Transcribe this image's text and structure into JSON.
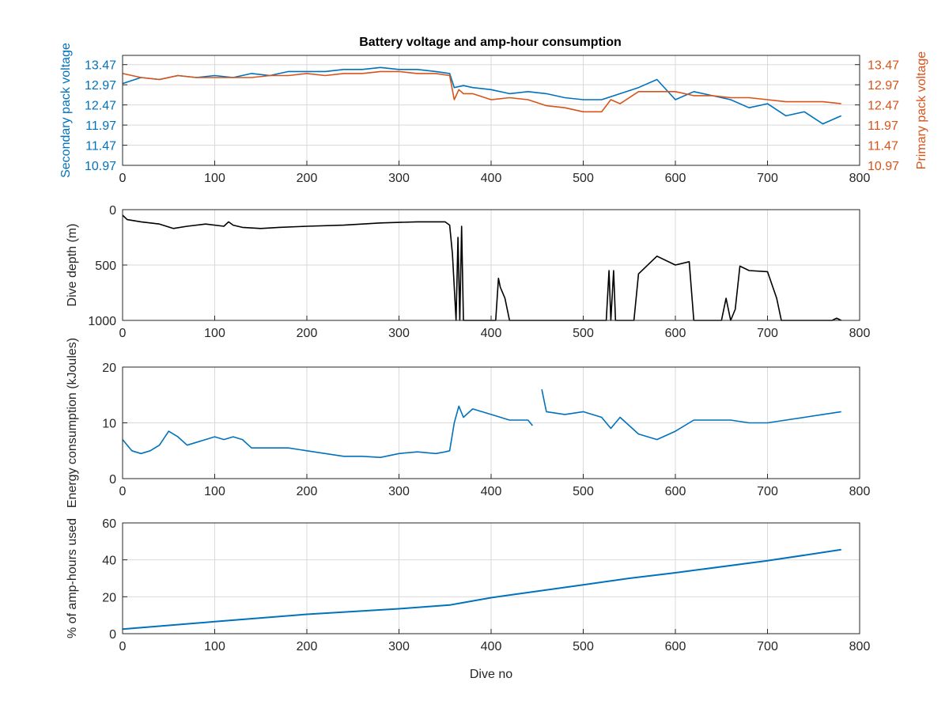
{
  "colors": {
    "secondary": "#0072bd",
    "primary": "#d95319",
    "depth": "#000000",
    "energy": "#0072bd",
    "amp_hours": "#0072bd",
    "grid": "#d9d9d9",
    "axis": "#262626"
  },
  "chart_data": [
    {
      "type": "line",
      "title": "Battery voltage and amp-hour consumption",
      "xlabel": "",
      "ylabel": "Secondary pack voltage",
      "ylabel_right": "Primary pack voltage",
      "xlim": [
        0,
        800
      ],
      "ylim": [
        10.97,
        13.7
      ],
      "xticks": [
        "0",
        "100",
        "200",
        "300",
        "400",
        "500",
        "600",
        "700",
        "800"
      ],
      "yticks": [
        "10.97",
        "11.47",
        "11.97",
        "12.47",
        "12.97",
        "13.47"
      ],
      "grid": true,
      "series": [
        {
          "axis": "left",
          "color": "#0072bd",
          "x": [
            0,
            20,
            40,
            60,
            80,
            100,
            120,
            140,
            160,
            180,
            200,
            220,
            240,
            260,
            280,
            300,
            320,
            340,
            355,
            360,
            370,
            380,
            400,
            420,
            440,
            460,
            480,
            500,
            520,
            540,
            560,
            580,
            600,
            620,
            640,
            660,
            680,
            700,
            720,
            740,
            760,
            780
          ],
          "y": [
            13.0,
            13.15,
            13.1,
            13.2,
            13.15,
            13.2,
            13.15,
            13.25,
            13.2,
            13.3,
            13.3,
            13.3,
            13.35,
            13.35,
            13.4,
            13.35,
            13.35,
            13.3,
            13.25,
            12.9,
            12.95,
            12.9,
            12.85,
            12.75,
            12.8,
            12.75,
            12.65,
            12.6,
            12.6,
            12.75,
            12.9,
            13.1,
            12.6,
            12.8,
            12.7,
            12.6,
            12.4,
            12.5,
            12.2,
            12.3,
            12.0,
            12.2
          ]
        },
        {
          "axis": "right",
          "color": "#d95319",
          "x": [
            0,
            20,
            40,
            60,
            80,
            100,
            120,
            140,
            160,
            180,
            200,
            220,
            240,
            260,
            280,
            300,
            320,
            340,
            355,
            360,
            365,
            370,
            380,
            400,
            420,
            440,
            460,
            480,
            500,
            520,
            530,
            540,
            560,
            580,
            600,
            620,
            640,
            660,
            680,
            700,
            720,
            740,
            760,
            780
          ],
          "y": [
            13.25,
            13.15,
            13.1,
            13.2,
            13.15,
            13.15,
            13.15,
            13.15,
            13.2,
            13.2,
            13.25,
            13.2,
            13.25,
            13.25,
            13.3,
            13.3,
            13.25,
            13.25,
            13.2,
            12.6,
            12.85,
            12.75,
            12.75,
            12.6,
            12.65,
            12.6,
            12.45,
            12.4,
            12.3,
            12.3,
            12.6,
            12.5,
            12.8,
            12.8,
            12.8,
            12.7,
            12.7,
            12.65,
            12.65,
            12.6,
            12.55,
            12.55,
            12.55,
            12.5
          ]
        }
      ]
    },
    {
      "type": "line",
      "title": "",
      "xlabel": "",
      "ylabel": "Dive depth (m)",
      "xlim": [
        0,
        800
      ],
      "ylim": [
        0,
        1000
      ],
      "y_reversed": true,
      "xticks": [
        "0",
        "100",
        "200",
        "300",
        "400",
        "500",
        "600",
        "700",
        "800"
      ],
      "yticks": [
        "0",
        "500",
        "1000"
      ],
      "grid": true,
      "series": [
        {
          "color": "#000000",
          "x": [
            0,
            5,
            20,
            40,
            55,
            70,
            90,
            110,
            115,
            120,
            130,
            150,
            170,
            200,
            240,
            280,
            320,
            350,
            355,
            358,
            362,
            364,
            366,
            368,
            370,
            372,
            375,
            400,
            405,
            408,
            410,
            415,
            420,
            500,
            525,
            528,
            530,
            533,
            535,
            550,
            555,
            560,
            580,
            600,
            615,
            620,
            650,
            655,
            660,
            665,
            670,
            680,
            700,
            710,
            715,
            720,
            770,
            775,
            780
          ],
          "y": [
            50,
            90,
            110,
            130,
            170,
            150,
            130,
            150,
            110,
            140,
            160,
            170,
            160,
            150,
            140,
            120,
            110,
            110,
            140,
            400,
            1000,
            250,
            1000,
            150,
            1000,
            1000,
            1000,
            1000,
            1000,
            620,
            700,
            800,
            1000,
            1000,
            1000,
            550,
            1000,
            550,
            1000,
            1000,
            1000,
            580,
            420,
            500,
            470,
            1000,
            1000,
            800,
            1000,
            900,
            510,
            550,
            560,
            800,
            1000,
            1000,
            1000,
            980,
            1000
          ]
        }
      ]
    },
    {
      "type": "line",
      "title": "",
      "xlabel": "",
      "ylabel": "Energy consumption (kJoules)",
      "xlim": [
        0,
        800
      ],
      "ylim": [
        0,
        20
      ],
      "xticks": [
        "0",
        "100",
        "200",
        "300",
        "400",
        "500",
        "600",
        "700",
        "800"
      ],
      "yticks": [
        "0",
        "10",
        "20"
      ],
      "grid": true,
      "series": [
        {
          "color": "#0072bd",
          "x": [
            0,
            10,
            20,
            30,
            40,
            50,
            60,
            70,
            80,
            90,
            100,
            110,
            120,
            130,
            140,
            160,
            180,
            200,
            220,
            240,
            260,
            280,
            300,
            320,
            340,
            350,
            355,
            360,
            365,
            370,
            380,
            400,
            420,
            440,
            445
          ],
          "y": [
            7,
            5,
            4.5,
            5,
            6,
            8.5,
            7.5,
            6,
            6.5,
            7,
            7.5,
            7,
            7.5,
            7,
            5.5,
            5.5,
            5.5,
            5,
            4.5,
            4,
            4,
            3.8,
            4.5,
            4.8,
            4.5,
            4.8,
            5,
            10,
            13,
            11,
            12.5,
            11.5,
            10.5,
            10.5,
            9.5
          ]
        },
        {
          "color": "#0072bd",
          "x": [
            455,
            460,
            480,
            500,
            520,
            530,
            540,
            560,
            580,
            600,
            620,
            640,
            660,
            680,
            700,
            720,
            740,
            760,
            780
          ],
          "y": [
            16,
            12,
            11.5,
            12,
            11,
            9,
            11,
            8,
            7,
            8.5,
            10.5,
            10.5,
            10.5,
            10,
            10,
            10.5,
            11,
            11.5,
            12
          ]
        }
      ]
    },
    {
      "type": "line",
      "title": "",
      "xlabel": "Dive no",
      "ylabel": "% of amp-hours used",
      "xlim": [
        0,
        800
      ],
      "ylim": [
        0,
        60
      ],
      "xticks": [
        "0",
        "100",
        "200",
        "300",
        "400",
        "500",
        "600",
        "700",
        "800"
      ],
      "yticks": [
        "0",
        "20",
        "40",
        "60"
      ],
      "grid": true,
      "series": [
        {
          "color": "#0072bd",
          "x": [
            0,
            100,
            200,
            300,
            355,
            400,
            500,
            550,
            600,
            700,
            780
          ],
          "y": [
            2.5,
            6.5,
            10.5,
            13.5,
            15.5,
            19.5,
            26.5,
            30,
            33,
            39.5,
            45.5
          ]
        }
      ]
    }
  ]
}
